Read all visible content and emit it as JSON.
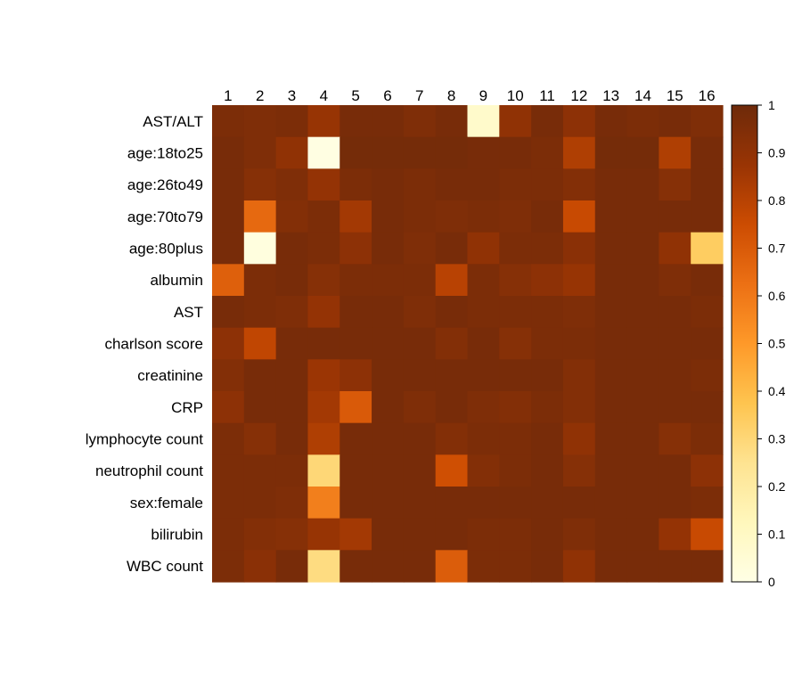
{
  "chart_data": {
    "type": "heatmap",
    "x_labels": [
      "1",
      "2",
      "3",
      "4",
      "5",
      "6",
      "7",
      "8",
      "9",
      "10",
      "11",
      "12",
      "13",
      "14",
      "15",
      "16"
    ],
    "y_labels": [
      "AST/ALT",
      "age:18to25",
      "age:26to49",
      "age:70to79",
      "age:80plus",
      "albumin",
      "AST",
      "charlson score",
      "creatinine",
      "CRP",
      "lymphocyte count",
      "neutrophil count",
      "sex:female",
      "bilirubin",
      "WBC count"
    ],
    "values": [
      [
        0.96,
        0.95,
        0.96,
        0.88,
        0.97,
        0.97,
        0.95,
        0.97,
        0.08,
        0.9,
        0.97,
        0.91,
        0.97,
        0.96,
        0.97,
        0.95
      ],
      [
        0.97,
        0.95,
        0.9,
        0.01,
        0.98,
        0.98,
        0.98,
        0.98,
        0.97,
        0.97,
        0.96,
        0.82,
        0.98,
        0.98,
        0.82,
        0.97
      ],
      [
        0.97,
        0.93,
        0.95,
        0.89,
        0.96,
        0.97,
        0.96,
        0.97,
        0.97,
        0.96,
        0.96,
        0.94,
        0.97,
        0.97,
        0.93,
        0.97
      ],
      [
        0.97,
        0.65,
        0.94,
        0.96,
        0.85,
        0.97,
        0.96,
        0.95,
        0.96,
        0.95,
        0.97,
        0.76,
        0.97,
        0.97,
        0.97,
        0.97
      ],
      [
        0.97,
        0.02,
        0.97,
        0.96,
        0.91,
        0.97,
        0.95,
        0.97,
        0.9,
        0.96,
        0.96,
        0.92,
        0.97,
        0.97,
        0.9,
        0.34
      ],
      [
        0.68,
        0.96,
        0.97,
        0.93,
        0.96,
        0.96,
        0.96,
        0.8,
        0.96,
        0.93,
        0.91,
        0.88,
        0.97,
        0.97,
        0.95,
        0.97
      ],
      [
        0.97,
        0.96,
        0.95,
        0.89,
        0.97,
        0.97,
        0.95,
        0.97,
        0.96,
        0.96,
        0.96,
        0.95,
        0.97,
        0.97,
        0.97,
        0.96
      ],
      [
        0.91,
        0.78,
        0.97,
        0.97,
        0.97,
        0.97,
        0.97,
        0.94,
        0.97,
        0.93,
        0.96,
        0.96,
        0.97,
        0.97,
        0.97,
        0.97
      ],
      [
        0.94,
        0.97,
        0.97,
        0.87,
        0.91,
        0.97,
        0.97,
        0.97,
        0.97,
        0.97,
        0.97,
        0.94,
        0.97,
        0.97,
        0.97,
        0.96
      ],
      [
        0.91,
        0.97,
        0.97,
        0.85,
        0.7,
        0.97,
        0.95,
        0.97,
        0.95,
        0.94,
        0.96,
        0.94,
        0.97,
        0.97,
        0.97,
        0.97
      ],
      [
        0.96,
        0.93,
        0.97,
        0.82,
        0.97,
        0.97,
        0.97,
        0.94,
        0.96,
        0.96,
        0.97,
        0.9,
        0.97,
        0.97,
        0.93,
        0.96
      ],
      [
        0.96,
        0.96,
        0.96,
        0.3,
        0.97,
        0.97,
        0.97,
        0.74,
        0.94,
        0.96,
        0.97,
        0.93,
        0.97,
        0.97,
        0.97,
        0.91
      ],
      [
        0.96,
        0.96,
        0.95,
        0.58,
        0.97,
        0.97,
        0.97,
        0.97,
        0.97,
        0.97,
        0.97,
        0.97,
        0.97,
        0.97,
        0.97,
        0.96
      ],
      [
        0.96,
        0.94,
        0.93,
        0.88,
        0.85,
        0.97,
        0.97,
        0.97,
        0.96,
        0.96,
        0.97,
        0.95,
        0.97,
        0.97,
        0.89,
        0.76
      ],
      [
        0.96,
        0.92,
        0.97,
        0.28,
        0.97,
        0.97,
        0.97,
        0.69,
        0.96,
        0.96,
        0.97,
        0.9,
        0.97,
        0.97,
        0.97,
        0.97
      ]
    ],
    "colorbar": {
      "min": 0,
      "max": 1,
      "ticks": [
        "0",
        "0.1",
        "0.2",
        "0.3",
        "0.4",
        "0.5",
        "0.6",
        "0.7",
        "0.8",
        "0.9",
        "1"
      ]
    },
    "colorscale": [
      "#ffffe5",
      "#fff7bc",
      "#fee391",
      "#fec44f",
      "#fe9929",
      "#ec7014",
      "#cc4c02",
      "#993404",
      "#6e2a0a"
    ],
    "title": "",
    "xlabel": "",
    "ylabel": ""
  }
}
